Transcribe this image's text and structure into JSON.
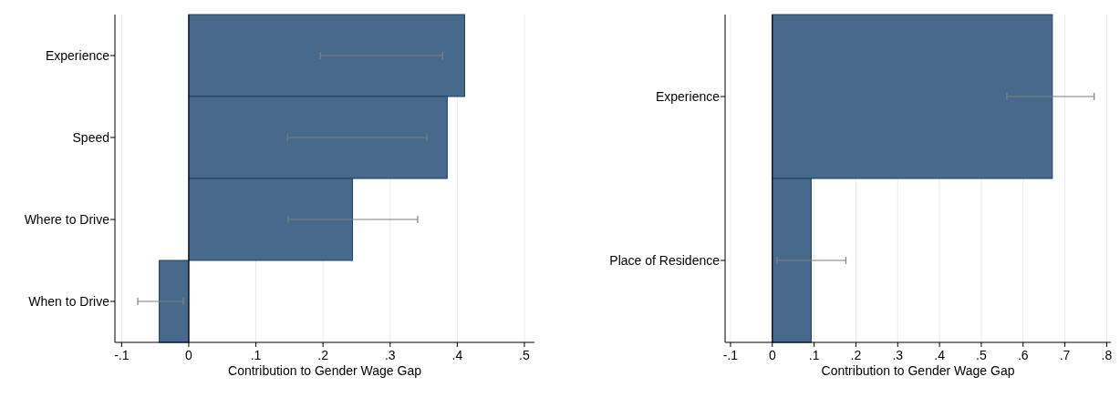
{
  "chart_data": [
    {
      "type": "bar",
      "orientation": "horizontal",
      "categories": [
        "Experience",
        "Speed",
        "Where to Drive",
        "When to Drive"
      ],
      "values": [
        0.411,
        0.385,
        0.244,
        -0.044
      ],
      "errors": [
        [
          0.196,
          0.378
        ],
        [
          0.147,
          0.355
        ],
        [
          0.148,
          0.341
        ],
        [
          -0.076,
          -0.008
        ]
      ],
      "color": "#476a8c",
      "xlabel": "Contribution to Gender Wage Gap",
      "xlim": [
        -0.11,
        0.515
      ],
      "xticks": [
        {
          "value": -0.1,
          "label": "-.1"
        },
        {
          "value": 0,
          "label": "0"
        },
        {
          "value": 0.1,
          "label": ".1"
        },
        {
          "value": 0.2,
          "label": ".2"
        },
        {
          "value": 0.3,
          "label": ".3"
        },
        {
          "value": 0.4,
          "label": ".4"
        },
        {
          "value": 0.5,
          "label": ".5"
        }
      ],
      "grid": "x",
      "ref_lines": [
        {
          "axis": "x",
          "value": 0,
          "color": "#000000"
        }
      ]
    },
    {
      "type": "bar",
      "orientation": "horizontal",
      "categories": [
        "Experience",
        "Place of Residence"
      ],
      "values": [
        0.67,
        0.093
      ],
      "errors": [
        [
          0.561,
          0.77
        ],
        [
          0.011,
          0.176
        ]
      ],
      "color": "#476a8c",
      "xlabel": "Contribution to Gender Wage Gap",
      "xlim": [
        -0.113,
        0.81
      ],
      "xticks": [
        {
          "value": -0.1,
          "label": "-.1"
        },
        {
          "value": 0,
          "label": "0"
        },
        {
          "value": 0.1,
          "label": ".1"
        },
        {
          "value": 0.2,
          "label": ".2"
        },
        {
          "value": 0.3,
          "label": ".3"
        },
        {
          "value": 0.4,
          "label": ".4"
        },
        {
          "value": 0.5,
          "label": ".5"
        },
        {
          "value": 0.6,
          "label": ".6"
        },
        {
          "value": 0.7,
          "label": ".7"
        },
        {
          "value": 0.8,
          "label": ".8"
        }
      ],
      "grid": "x",
      "ref_lines": [
        {
          "axis": "x",
          "value": 0,
          "color": "#000000"
        }
      ]
    }
  ]
}
